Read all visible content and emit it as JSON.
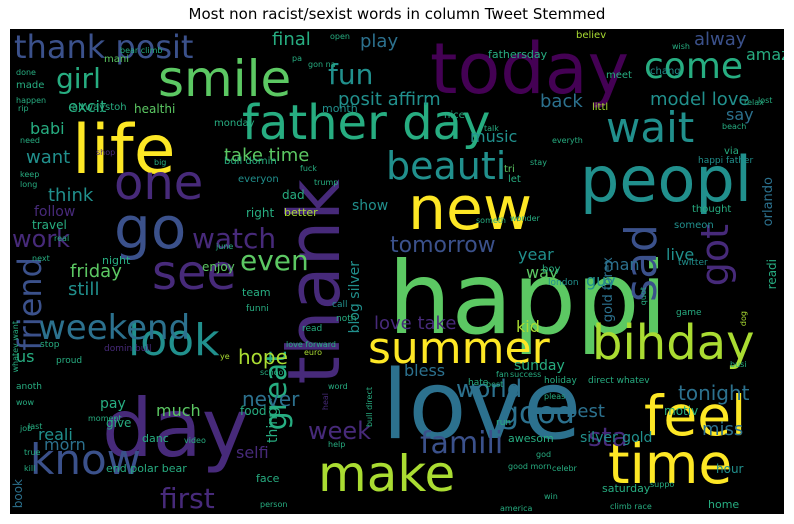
{
  "title": "Most non racist/sexist words in column Tweet Stemmed",
  "palette": [
    "#440154",
    "#472a7a",
    "#3b518b",
    "#2c718e",
    "#21908d",
    "#27ad81",
    "#5cc863",
    "#aadc32",
    "#fde725"
  ],
  "words": [
    {
      "text": "happi",
      "size": 100,
      "color": 6,
      "vertical": false
    },
    {
      "text": "love",
      "size": 95,
      "color": 3,
      "vertical": false
    },
    {
      "text": "today",
      "size": 70,
      "color": 0,
      "vertical": false
    },
    {
      "text": "thank",
      "size": 72,
      "color": 1,
      "vertical": true
    },
    {
      "text": "life",
      "size": 68,
      "color": 8,
      "vertical": false
    },
    {
      "text": "day",
      "size": 80,
      "color": 1,
      "vertical": false
    },
    {
      "text": "new",
      "size": 60,
      "color": 8,
      "vertical": false
    },
    {
      "text": "peopl",
      "size": 62,
      "color": 4,
      "vertical": false
    },
    {
      "text": "father day",
      "size": 48,
      "color": 5,
      "vertical": false
    },
    {
      "text": "smile",
      "size": 50,
      "color": 6,
      "vertical": false
    },
    {
      "text": "go",
      "size": 58,
      "color": 2,
      "vertical": false
    },
    {
      "text": "one",
      "size": 48,
      "color": 1,
      "vertical": false
    },
    {
      "text": "time",
      "size": 55,
      "color": 8,
      "vertical": false
    },
    {
      "text": "make",
      "size": 50,
      "color": 7,
      "vertical": false
    },
    {
      "text": "feel",
      "size": 55,
      "color": 8,
      "vertical": false
    },
    {
      "text": "bihday",
      "size": 48,
      "color": 7,
      "vertical": false
    },
    {
      "text": "summer",
      "size": 44,
      "color": 8,
      "vertical": false
    },
    {
      "text": "see",
      "size": 48,
      "color": 1,
      "vertical": false
    },
    {
      "text": "look",
      "size": 44,
      "color": 4,
      "vertical": false
    },
    {
      "text": "know",
      "size": 42,
      "color": 2,
      "vertical": false
    },
    {
      "text": "weekend",
      "size": 34,
      "color": 3,
      "vertical": false
    },
    {
      "text": "wait",
      "size": 42,
      "color": 4,
      "vertical": false
    },
    {
      "text": "come",
      "size": 36,
      "color": 5,
      "vertical": false
    },
    {
      "text": "beauti",
      "size": 38,
      "color": 4,
      "vertical": false
    },
    {
      "text": "sad",
      "size": 44,
      "color": 2,
      "vertical": true
    },
    {
      "text": "got",
      "size": 38,
      "color": 1,
      "vertical": true
    },
    {
      "text": "friend",
      "size": 32,
      "color": 2,
      "vertical": true
    },
    {
      "text": "thank posit",
      "size": 32,
      "color": 2,
      "vertical": false
    },
    {
      "text": "fun",
      "size": 28,
      "color": 4,
      "vertical": false
    },
    {
      "text": "girl",
      "size": 28,
      "color": 5,
      "vertical": false
    },
    {
      "text": "work",
      "size": 24,
      "color": 1,
      "vertical": false
    },
    {
      "text": "watch",
      "size": 28,
      "color": 1,
      "vertical": false
    },
    {
      "text": "even",
      "size": 28,
      "color": 6,
      "vertical": false
    },
    {
      "text": "famili",
      "size": 30,
      "color": 2,
      "vertical": false
    },
    {
      "text": "good",
      "size": 30,
      "color": 3,
      "vertical": false
    },
    {
      "text": "first",
      "size": 28,
      "color": 1,
      "vertical": false
    },
    {
      "text": "world",
      "size": 24,
      "color": 3,
      "vertical": false
    },
    {
      "text": "great",
      "size": 30,
      "color": 5,
      "vertical": true
    },
    {
      "text": "week",
      "size": 24,
      "color": 1,
      "vertical": false
    },
    {
      "text": "tomorrow",
      "size": 22,
      "color": 2,
      "vertical": false
    },
    {
      "text": "sta",
      "size": 26,
      "color": 1,
      "vertical": false
    },
    {
      "text": "tonight",
      "size": 20,
      "color": 3,
      "vertical": false
    },
    {
      "text": "best",
      "size": 18,
      "color": 3,
      "vertical": false
    },
    {
      "text": "miss",
      "size": 18,
      "color": 3,
      "vertical": false
    },
    {
      "text": "hope",
      "size": 20,
      "color": 7,
      "vertical": false
    },
    {
      "text": "never",
      "size": 20,
      "color": 3,
      "vertical": false
    },
    {
      "text": "play",
      "size": 18,
      "color": 3,
      "vertical": false
    },
    {
      "text": "final",
      "size": 18,
      "color": 5,
      "vertical": false
    },
    {
      "text": "alway",
      "size": 18,
      "color": 2,
      "vertical": false
    },
    {
      "text": "amaz",
      "size": 16,
      "color": 5,
      "vertical": false
    },
    {
      "text": "posit affirm",
      "size": 18,
      "color": 4,
      "vertical": false
    },
    {
      "text": "model love",
      "size": 18,
      "color": 4,
      "vertical": false
    },
    {
      "text": "back",
      "size": 18,
      "color": 3,
      "vertical": false
    },
    {
      "text": "say",
      "size": 16,
      "color": 3,
      "vertical": false
    },
    {
      "text": "take time",
      "size": 18,
      "color": 6,
      "vertical": false
    },
    {
      "text": "music",
      "size": 16,
      "color": 4,
      "vertical": false
    },
    {
      "text": "think",
      "size": 18,
      "color": 4,
      "vertical": false
    },
    {
      "text": "want",
      "size": 18,
      "color": 4,
      "vertical": false
    },
    {
      "text": "babi",
      "size": 16,
      "color": 5,
      "vertical": false
    },
    {
      "text": "excit",
      "size": 16,
      "color": 5,
      "vertical": false
    },
    {
      "text": "still",
      "size": 18,
      "color": 4,
      "vertical": false
    },
    {
      "text": "friday",
      "size": 18,
      "color": 6,
      "vertical": false
    },
    {
      "text": "love take",
      "size": 18,
      "color": 1,
      "vertical": false
    },
    {
      "text": "year",
      "size": 16,
      "color": 4,
      "vertical": false
    },
    {
      "text": "way",
      "size": 16,
      "color": 6,
      "vertical": false
    },
    {
      "text": "man",
      "size": 16,
      "color": 3,
      "vertical": false
    },
    {
      "text": "guy",
      "size": 16,
      "color": 4,
      "vertical": false
    },
    {
      "text": "live",
      "size": 16,
      "color": 4,
      "vertical": false
    },
    {
      "text": "kid",
      "size": 16,
      "color": 7,
      "vertical": false
    },
    {
      "text": "bless",
      "size": 16,
      "color": 3,
      "vertical": false
    },
    {
      "text": "sunday",
      "size": 14,
      "color": 5,
      "vertical": false
    },
    {
      "text": "morn",
      "size": 16,
      "color": 3,
      "vertical": false
    },
    {
      "text": "reali",
      "size": 16,
      "color": 4,
      "vertical": false
    },
    {
      "text": "pay",
      "size": 14,
      "color": 5,
      "vertical": false
    },
    {
      "text": "much",
      "size": 16,
      "color": 6,
      "vertical": false
    },
    {
      "text": "selfi",
      "size": 16,
      "color": 1,
      "vertical": false
    },
    {
      "text": "us",
      "size": 16,
      "color": 5,
      "vertical": false
    },
    {
      "text": "show",
      "size": 14,
      "color": 4,
      "vertical": false
    },
    {
      "text": "follow",
      "size": 14,
      "color": 1,
      "vertical": false
    },
    {
      "text": "travel",
      "size": 12,
      "color": 5,
      "vertical": false
    },
    {
      "text": "enjoy",
      "size": 12,
      "color": 6,
      "vertical": false
    },
    {
      "text": "thing",
      "size": 14,
      "color": 5,
      "vertical": true
    },
    {
      "text": "give",
      "size": 12,
      "color": 5,
      "vertical": false
    },
    {
      "text": "silver gold",
      "size": 14,
      "color": 4,
      "vertical": false
    },
    {
      "text": "blog silver",
      "size": 14,
      "color": 4,
      "vertical": true
    },
    {
      "text": "gold forex",
      "size": 13,
      "color": 3,
      "vertical": true
    },
    {
      "text": "orlando",
      "size": 13,
      "color": 3,
      "vertical": true
    },
    {
      "text": "readi",
      "size": 12,
      "color": 5,
      "vertical": true
    },
    {
      "text": "motiv",
      "size": 12,
      "color": 5,
      "vertical": false
    },
    {
      "text": "hour",
      "size": 12,
      "color": 4,
      "vertical": false
    },
    {
      "text": "home",
      "size": 11,
      "color": 5,
      "vertical": false
    },
    {
      "text": "awesom",
      "size": 11,
      "color": 5,
      "vertical": false
    },
    {
      "text": "saturday",
      "size": 11,
      "color": 5,
      "vertical": false
    },
    {
      "text": "end polar bear",
      "size": 11,
      "color": 5,
      "vertical": false
    },
    {
      "text": "book",
      "size": 12,
      "color": 3,
      "vertical": true
    },
    {
      "text": "food",
      "size": 12,
      "color": 5,
      "vertical": false
    },
    {
      "text": "face",
      "size": 11,
      "color": 5,
      "vertical": false
    },
    {
      "text": "danc",
      "size": 11,
      "color": 5,
      "vertical": false
    },
    {
      "text": "dad",
      "size": 12,
      "color": 5,
      "vertical": false
    },
    {
      "text": "right",
      "size": 12,
      "color": 5,
      "vertical": false
    },
    {
      "text": "better",
      "size": 11,
      "color": 7,
      "vertical": false
    },
    {
      "text": "team",
      "size": 11,
      "color": 5,
      "vertical": false
    },
    {
      "text": "night",
      "size": 11,
      "color": 5,
      "vertical": false
    },
    {
      "text": "fathersday",
      "size": 11,
      "color": 5,
      "vertical": false
    },
    {
      "text": "month",
      "size": 11,
      "color": 4,
      "vertical": false
    },
    {
      "text": "believ",
      "size": 10,
      "color": 7,
      "vertical": false
    },
    {
      "text": "meet",
      "size": 10,
      "color": 5,
      "vertical": false
    },
    {
      "text": "chang",
      "size": 10,
      "color": 4,
      "vertical": false
    },
    {
      "text": "mani",
      "size": 10,
      "color": 6,
      "vertical": false
    },
    {
      "text": "healthi",
      "size": 12,
      "color": 6,
      "vertical": false
    },
    {
      "text": "altwaystoh",
      "size": 10,
      "color": 5,
      "vertical": false
    },
    {
      "text": "monday",
      "size": 10,
      "color": 5,
      "vertical": false
    },
    {
      "text": "made",
      "size": 10,
      "color": 5,
      "vertical": false
    },
    {
      "text": "nice",
      "size": 10,
      "color": 5,
      "vertical": false
    },
    {
      "text": "littl",
      "size": 10,
      "color": 7,
      "vertical": false
    },
    {
      "text": "via",
      "size": 10,
      "color": 5,
      "vertical": false
    },
    {
      "text": "happi father",
      "size": 9,
      "color": 4,
      "vertical": false
    },
    {
      "text": "bull domin",
      "size": 10,
      "color": 5,
      "vertical": false
    },
    {
      "text": "everyon",
      "size": 10,
      "color": 4,
      "vertical": false
    },
    {
      "text": "tri",
      "size": 10,
      "color": 6,
      "vertical": false
    },
    {
      "text": "let",
      "size": 10,
      "color": 5,
      "vertical": false
    },
    {
      "text": "thought",
      "size": 10,
      "color": 5,
      "vertical": false
    },
    {
      "text": "someon",
      "size": 10,
      "color": 4,
      "vertical": false
    },
    {
      "text": "twitter",
      "size": 9,
      "color": 4,
      "vertical": false
    },
    {
      "text": "london",
      "size": 9,
      "color": 4,
      "vertical": false
    },
    {
      "text": "boy",
      "size": 10,
      "color": 5,
      "vertical": false
    },
    {
      "text": "call",
      "size": 9,
      "color": 4,
      "vertical": false
    },
    {
      "text": "read",
      "size": 9,
      "color": 5,
      "vertical": false
    },
    {
      "text": "noth",
      "size": 9,
      "color": 5,
      "vertical": false
    },
    {
      "text": "funni",
      "size": 9,
      "color": 5,
      "vertical": false
    },
    {
      "text": "game",
      "size": 9,
      "color": 5,
      "vertical": false
    },
    {
      "text": "holiday",
      "size": 9,
      "color": 5,
      "vertical": false
    },
    {
      "text": "stop",
      "size": 9,
      "color": 5,
      "vertical": false
    },
    {
      "text": "proud",
      "size": 9,
      "color": 5,
      "vertical": false
    },
    {
      "text": "domin bull",
      "size": 9,
      "color": 1,
      "vertical": false
    },
    {
      "text": "direct whatev",
      "size": 9,
      "color": 5,
      "vertical": false
    },
    {
      "text": "hate",
      "size": 9,
      "color": 5,
      "vertical": false
    },
    {
      "text": "run",
      "size": 9,
      "color": 5,
      "vertical": false
    },
    {
      "text": "anoth",
      "size": 9,
      "color": 5,
      "vertical": false
    },
    {
      "text": "school",
      "size": 8,
      "color": 5,
      "vertical": false
    },
    {
      "text": "euro",
      "size": 8,
      "color": 7,
      "vertical": false
    },
    {
      "text": "word",
      "size": 8,
      "color": 5,
      "vertical": false
    },
    {
      "text": "help",
      "size": 8,
      "color": 5,
      "vertical": false
    },
    {
      "text": "video",
      "size": 8,
      "color": 5,
      "vertical": false
    },
    {
      "text": "moment",
      "size": 8,
      "color": 5,
      "vertical": false
    },
    {
      "text": "last",
      "size": 8,
      "color": 5,
      "vertical": false
    },
    {
      "text": "true",
      "size": 8,
      "color": 5,
      "vertical": false
    },
    {
      "text": "kill",
      "size": 8,
      "color": 5,
      "vertical": false
    },
    {
      "text": "god",
      "size": 8,
      "color": 5,
      "vertical": false
    },
    {
      "text": "good morn",
      "size": 8,
      "color": 5,
      "vertical": false
    },
    {
      "text": "celebr",
      "size": 8,
      "color": 5,
      "vertical": false
    },
    {
      "text": "win",
      "size": 8,
      "color": 5,
      "vertical": false
    },
    {
      "text": "suppo",
      "size": 8,
      "color": 5,
      "vertical": false
    },
    {
      "text": "climb race",
      "size": 8,
      "color": 5,
      "vertical": false
    },
    {
      "text": "person",
      "size": 8,
      "color": 5,
      "vertical": false
    },
    {
      "text": "america",
      "size": 8,
      "color": 5,
      "vertical": false
    },
    {
      "text": "success",
      "size": 8,
      "color": 5,
      "vertical": false
    },
    {
      "text": "pleas",
      "size": 8,
      "color": 5,
      "vertical": false
    },
    {
      "text": "open",
      "size": 8,
      "color": 5,
      "vertical": false
    },
    {
      "text": "gon na",
      "size": 8,
      "color": 5,
      "vertical": false
    },
    {
      "text": "pa",
      "size": 8,
      "color": 5,
      "vertical": false
    },
    {
      "text": "bear climb",
      "size": 8,
      "color": 5,
      "vertical": false
    },
    {
      "text": "happen",
      "size": 8,
      "color": 5,
      "vertical": false
    },
    {
      "text": "rip",
      "size": 8,
      "color": 5,
      "vertical": false
    },
    {
      "text": "need",
      "size": 8,
      "color": 5,
      "vertical": false
    },
    {
      "text": "keep",
      "size": 8,
      "color": 5,
      "vertical": false
    },
    {
      "text": "long",
      "size": 8,
      "color": 5,
      "vertical": false
    },
    {
      "text": "shop",
      "size": 8,
      "color": 1,
      "vertical": false
    },
    {
      "text": "big",
      "size": 8,
      "color": 5,
      "vertical": false
    },
    {
      "text": "trump",
      "size": 8,
      "color": 5,
      "vertical": false
    },
    {
      "text": "fuck",
      "size": 8,
      "color": 5,
      "vertical": false
    },
    {
      "text": "talk",
      "size": 8,
      "color": 5,
      "vertical": false
    },
    {
      "text": "stay",
      "size": 8,
      "color": 5,
      "vertical": false
    },
    {
      "text": "everyth",
      "size": 8,
      "color": 5,
      "vertical": false
    },
    {
      "text": "beach",
      "size": 8,
      "color": 5,
      "vertical": false
    },
    {
      "text": "relax",
      "size": 8,
      "color": 5,
      "vertical": false
    },
    {
      "text": "lost",
      "size": 8,
      "color": 5,
      "vertical": false
    },
    {
      "text": "wish",
      "size": 8,
      "color": 5,
      "vertical": false
    },
    {
      "text": "done",
      "size": 8,
      "color": 5,
      "vertical": false
    },
    {
      "text": "someth",
      "size": 8,
      "color": 5,
      "vertical": false
    },
    {
      "text": "wonder",
      "size": 8,
      "color": 5,
      "vertical": false
    },
    {
      "text": "real",
      "size": 8,
      "color": 5,
      "vertical": false
    },
    {
      "text": "june",
      "size": 8,
      "color": 5,
      "vertical": false
    },
    {
      "text": "next",
      "size": 8,
      "color": 5,
      "vertical": false
    },
    {
      "text": "whatev want",
      "size": 8,
      "color": 5,
      "vertical": true
    },
    {
      "text": "love forward",
      "size": 8,
      "color": 5,
      "vertical": false
    },
    {
      "text": "ye",
      "size": 8,
      "color": 7,
      "vertical": false
    },
    {
      "text": "fan",
      "size": 8,
      "color": 5,
      "vertical": false
    },
    {
      "text": "post",
      "size": 8,
      "color": 5,
      "vertical": false
    },
    {
      "text": "quot",
      "size": 8,
      "color": 5,
      "vertical": true
    },
    {
      "text": "dog",
      "size": 8,
      "color": 7,
      "vertical": true
    },
    {
      "text": "busi",
      "size": 8,
      "color": 5,
      "vertical": false
    },
    {
      "text": "wow",
      "size": 8,
      "color": 5,
      "vertical": false
    },
    {
      "text": "job",
      "size": 8,
      "color": 5,
      "vertical": false
    },
    {
      "text": "bull direct",
      "size": 8,
      "color": 5,
      "vertical": true
    },
    {
      "text": "heal",
      "size": 8,
      "color": 1,
      "vertical": true
    }
  ]
}
